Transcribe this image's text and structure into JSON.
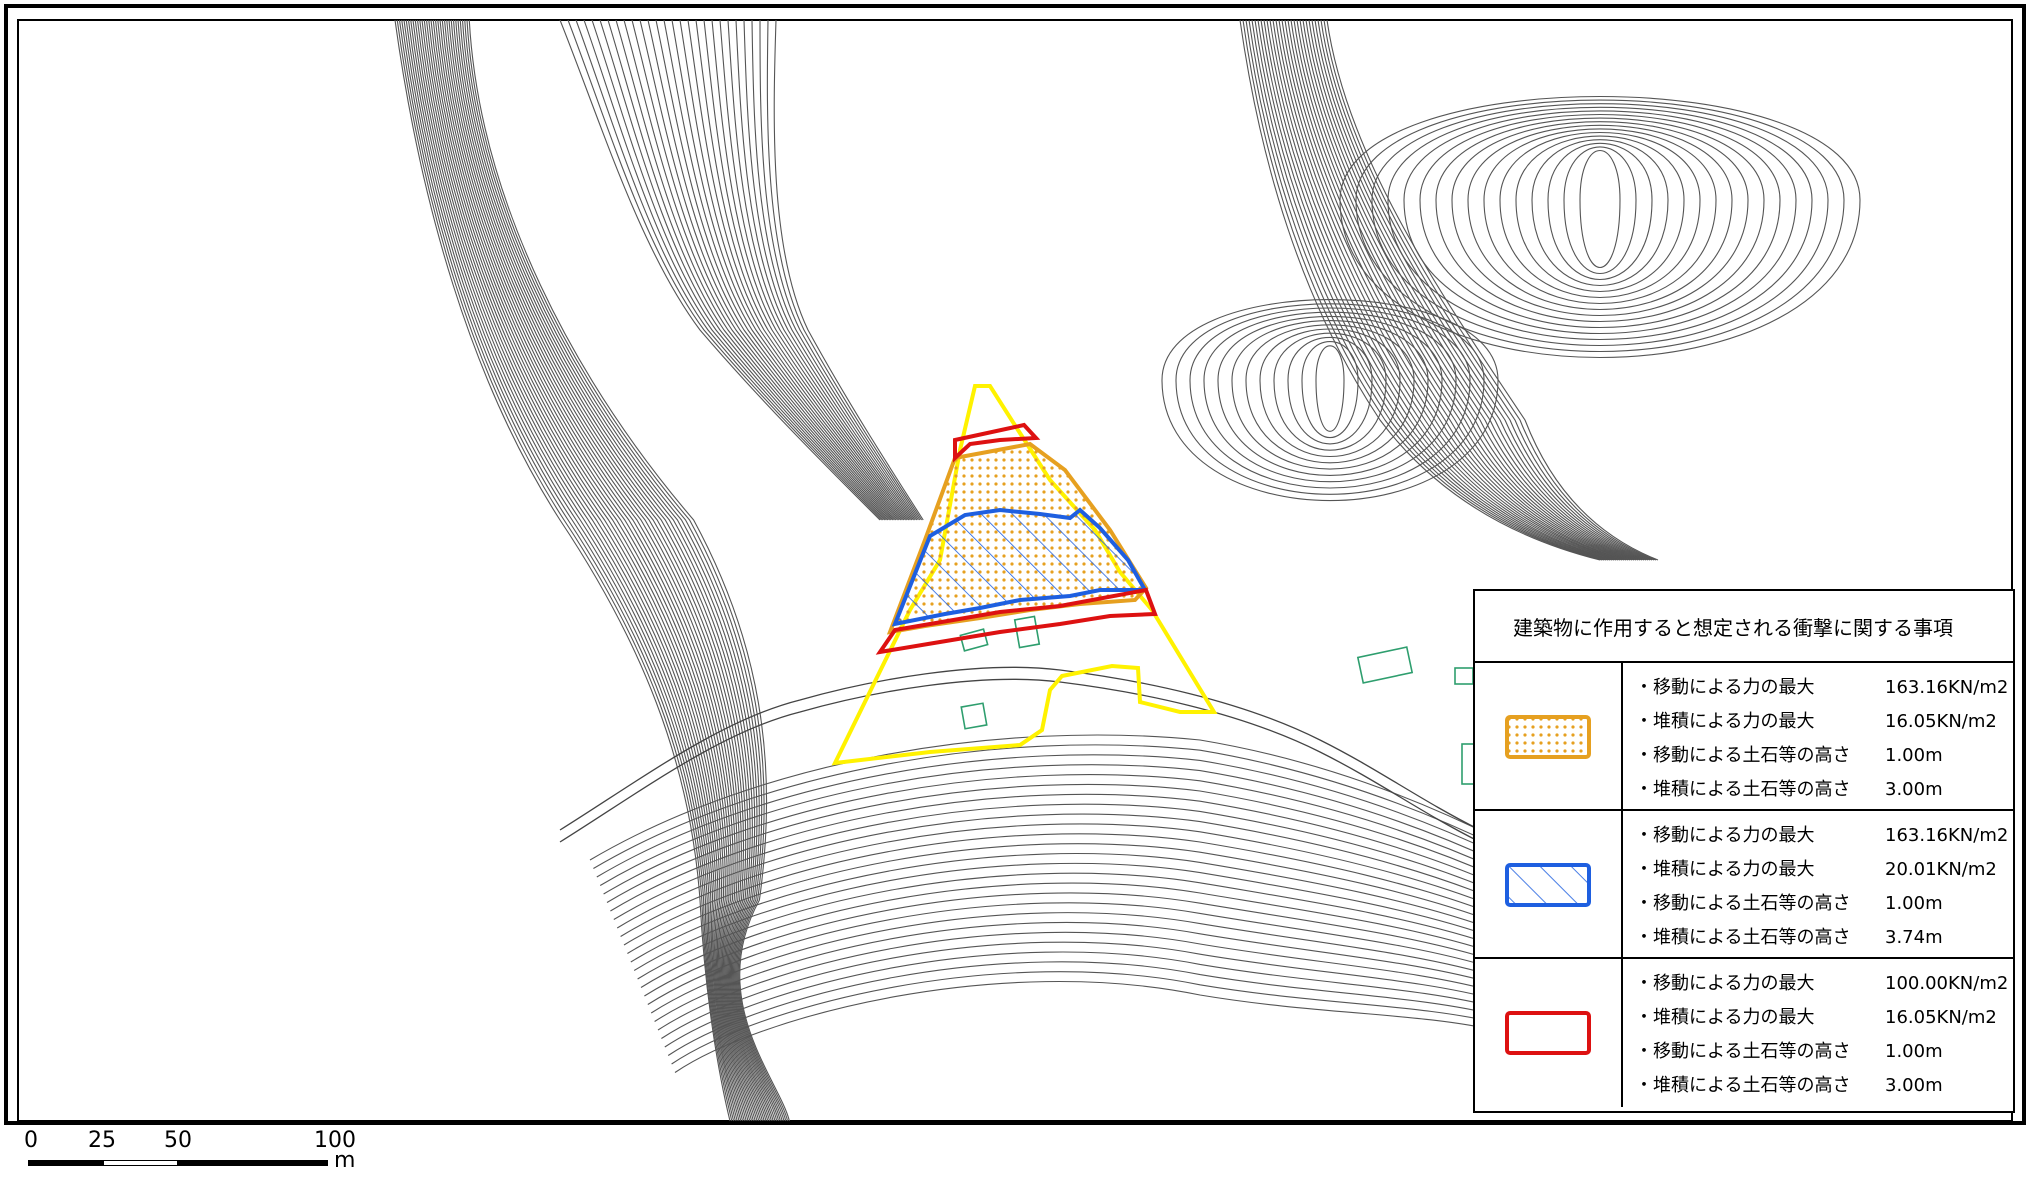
{
  "legend": {
    "title": "建築物に作用すると想定される衝撃に関する事項",
    "rows": [
      {
        "swatch": "orange-dotted-swatch",
        "color": "#E6A020",
        "lines": [
          {
            "label": "・移動による力の最大",
            "value": "163.16KN/m2"
          },
          {
            "label": "・堆積による力の最大",
            "value": "16.05KN/m2"
          },
          {
            "label": "・移動による土石等の高さ",
            "value": "1.00m"
          },
          {
            "label": "・堆積による土石等の高さ",
            "value": "3.00m"
          }
        ]
      },
      {
        "swatch": "blue-hatched-swatch",
        "color": "#1E5FE0",
        "lines": [
          {
            "label": "・移動による力の最大",
            "value": "163.16KN/m2"
          },
          {
            "label": "・堆積による力の最大",
            "value": "20.01KN/m2"
          },
          {
            "label": "・移動による土石等の高さ",
            "value": "1.00m"
          },
          {
            "label": "・堆積による土石等の高さ",
            "value": "3.74m"
          }
        ]
      },
      {
        "swatch": "red-outline-swatch",
        "color": "#DD1111",
        "lines": [
          {
            "label": "・移動による力の最大",
            "value": "100.00KN/m2"
          },
          {
            "label": "・堆積による力の最大",
            "value": "16.05KN/m2"
          },
          {
            "label": "・移動による土石等の高さ",
            "value": "1.00m"
          },
          {
            "label": "・堆積による土石等の高さ",
            "value": "3.00m"
          }
        ]
      }
    ]
  },
  "scale": {
    "ticks": [
      "0",
      "25",
      "50",
      "100"
    ],
    "unit": "m"
  },
  "colors": {
    "zone_outline": "#FFF200",
    "orange": "#E6A020",
    "blue": "#1E5FE0",
    "red": "#DD1111",
    "building": "#2E9E6E",
    "contour": "#555555"
  }
}
